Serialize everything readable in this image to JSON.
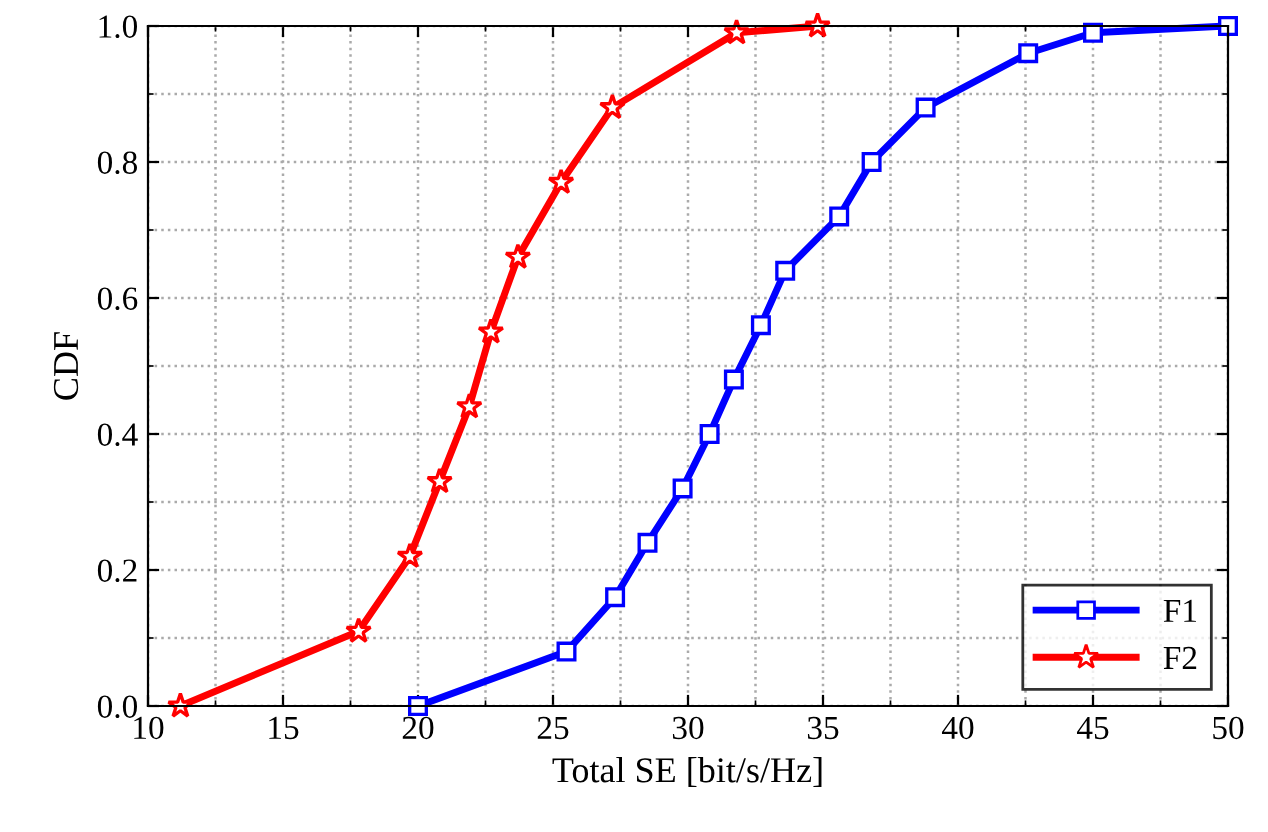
{
  "chart_data": {
    "type": "line",
    "xlabel": "Total SE [bit/s/Hz]",
    "ylabel": "CDF",
    "xlim": [
      10,
      50
    ],
    "xticks": [
      10,
      15,
      20,
      25,
      30,
      35,
      40,
      45,
      50
    ],
    "ylim": [
      0,
      1
    ],
    "yticks": [
      {
        "value": 0,
        "label": "0.0"
      },
      {
        "value": 0.2,
        "label": "0.2"
      },
      {
        "value": 0.4,
        "label": "0.4"
      },
      {
        "value": 0.6,
        "label": "0.6"
      },
      {
        "value": 0.8,
        "label": "0.8"
      },
      {
        "value": 1,
        "label": "1.0"
      }
    ],
    "grid": true,
    "legend": "bottom right",
    "line_style": "solid",
    "series": [
      {
        "name": "F1",
        "color": "#0000ff",
        "marker": "square",
        "x": [
          20,
          25.5,
          27.3,
          28.5,
          29.8,
          30.8,
          31.7,
          32.7,
          33.6,
          35.6,
          36.8,
          38.8,
          42.6,
          45,
          50
        ],
        "values": [
          0,
          0.08,
          0.16,
          0.24,
          0.32,
          0.4,
          0.48,
          0.56,
          0.64,
          0.72,
          0.8,
          0.88,
          0.96,
          0.99,
          1.0
        ]
      },
      {
        "name": "F2",
        "color": "#ff0000",
        "marker": "star",
        "x": [
          11.2,
          17.8,
          19.7,
          20.8,
          21.9,
          22.7,
          23.7,
          25.3,
          27.2,
          31.8,
          34.8
        ],
        "values": [
          0,
          0.11,
          0.22,
          0.33,
          0.44,
          0.55,
          0.66,
          0.77,
          0.88,
          0.99,
          1.0
        ]
      }
    ]
  }
}
